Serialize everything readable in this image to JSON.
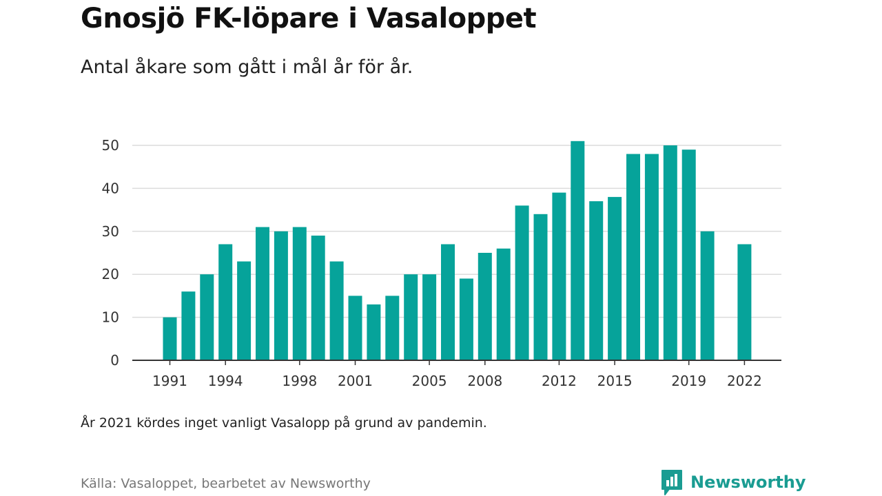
{
  "title": "Gnosjö FK-löpare i Vasaloppet",
  "subtitle": "Antal åkare som gått i mål år för år.",
  "note": "År 2021 kördes inget vanligt Vasalopp på grund av pandemin.",
  "source": "Källa: Vasaloppet, bearbetet av Newsworthy",
  "brand": {
    "name": "Newsworthy",
    "color": "#1a9c92"
  },
  "chart_data": {
    "type": "bar",
    "title": "",
    "xlabel": "",
    "ylabel": "",
    "bar_color": "#06a39a",
    "categories": [
      1991,
      1992,
      1993,
      1994,
      1995,
      1996,
      1997,
      1998,
      1999,
      2000,
      2001,
      2002,
      2003,
      2004,
      2005,
      2006,
      2007,
      2008,
      2009,
      2010,
      2011,
      2012,
      2013,
      2014,
      2015,
      2016,
      2017,
      2018,
      2019,
      2020,
      2021,
      2022
    ],
    "values": [
      10,
      16,
      20,
      27,
      23,
      31,
      30,
      31,
      29,
      23,
      15,
      13,
      15,
      20,
      20,
      27,
      19,
      25,
      26,
      36,
      34,
      39,
      51,
      37,
      38,
      48,
      48,
      50,
      49,
      30,
      null,
      27
    ],
    "x_tick_labels": [
      "1991",
      "1994",
      "1998",
      "2001",
      "2005",
      "2008",
      "2012",
      "2015",
      "2019",
      "2022"
    ],
    "y_ticks": [
      0,
      10,
      20,
      30,
      40,
      50
    ],
    "ylim": [
      0,
      50
    ],
    "grid": true,
    "legend": "none"
  }
}
